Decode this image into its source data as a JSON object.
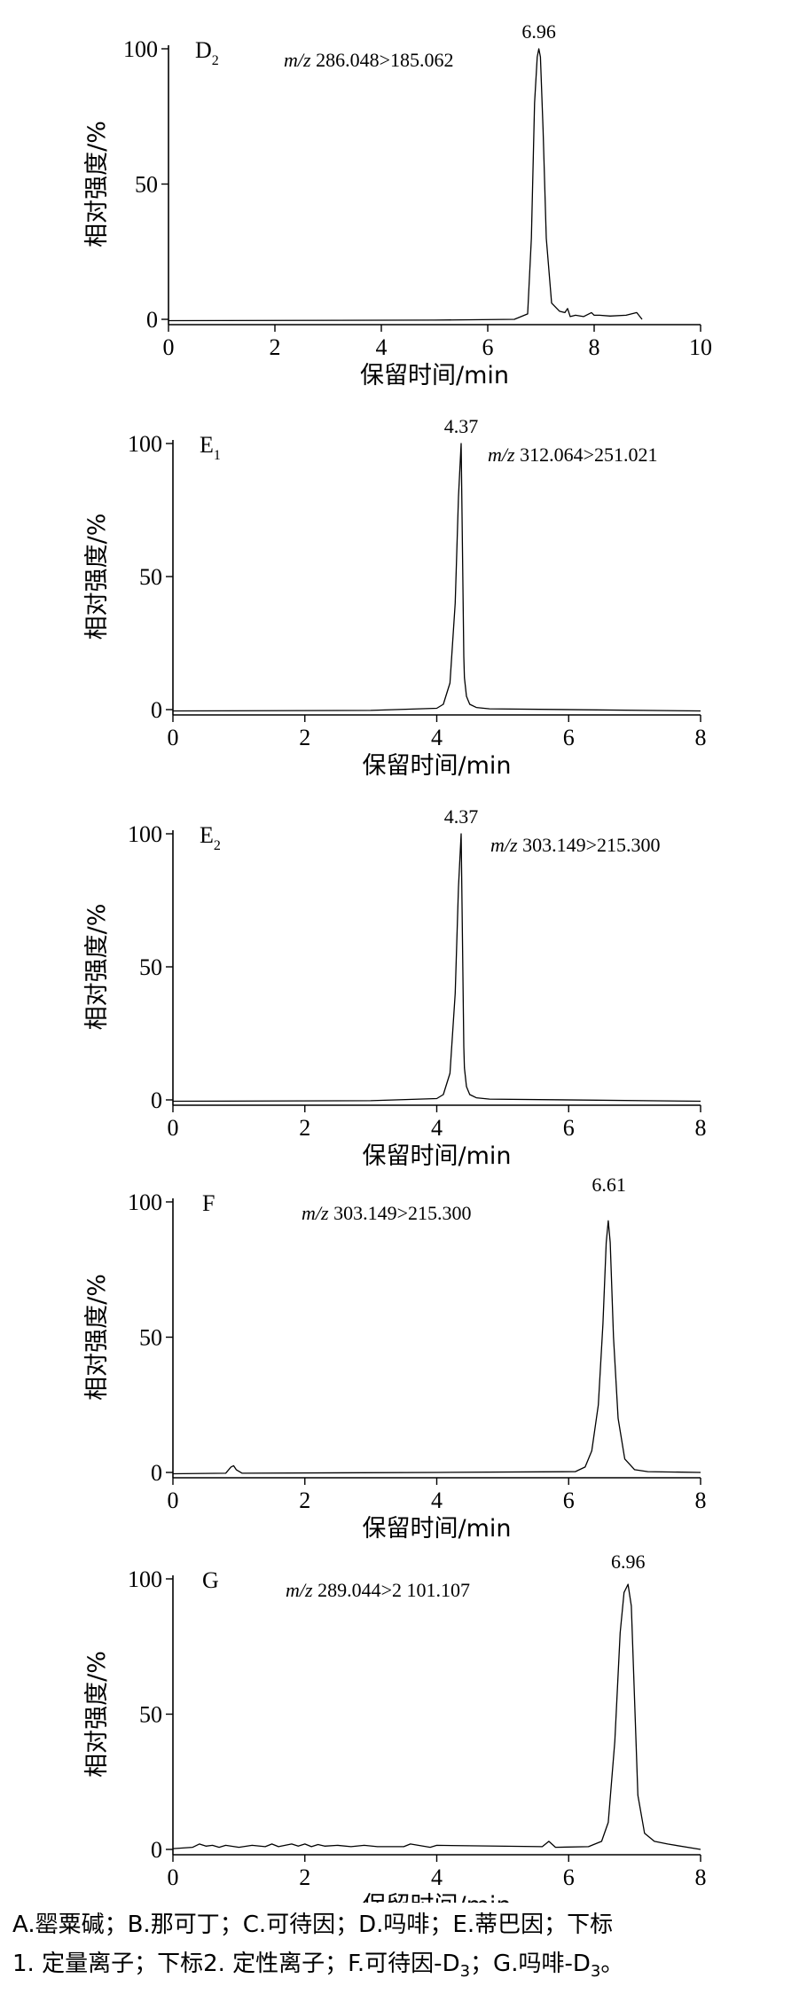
{
  "chart_data": [
    {
      "type": "line",
      "panel_label": "D",
      "panel_sub": "2",
      "transition": "286.048>185.062",
      "mz_prefix": "m/z",
      "xlabel": "保留时间/min",
      "ylabel": "相对强度/%",
      "xlim": [
        0,
        10
      ],
      "ylim": [
        0,
        100
      ],
      "xticks": [
        0,
        2,
        4,
        6,
        8,
        10
      ],
      "yticks": [
        0,
        50,
        100
      ],
      "peak_label": "6.96",
      "peak_label_x": 6.96,
      "series": [
        {
          "x": [
            0,
            5,
            6.5,
            6.75,
            6.82,
            6.88,
            6.93,
            6.96,
            6.99,
            7.04,
            7.1,
            7.2,
            7.35,
            7.45,
            7.5,
            7.55,
            7.65,
            7.8,
            7.95,
            8.0,
            8.1,
            8.3,
            8.6,
            8.8,
            8.9
          ],
          "y": [
            -0.5,
            -0.3,
            0,
            2,
            30,
            80,
            97,
            100,
            97,
            70,
            30,
            6,
            3,
            2.5,
            4,
            1,
            1.5,
            1,
            2.5,
            1.5,
            1.5,
            1.2,
            1.5,
            2.5,
            0
          ]
        }
      ]
    },
    {
      "type": "line",
      "panel_label": "E",
      "panel_sub": "1",
      "transition": "312.064>251.021",
      "mz_prefix": "m/z",
      "xlabel": "保留时间/min",
      "ylabel": "相对强度/%",
      "xlim": [
        0,
        8
      ],
      "ylim": [
        0,
        100
      ],
      "xticks": [
        0,
        2,
        4,
        6,
        8
      ],
      "yticks": [
        0,
        50,
        100
      ],
      "peak_label": "4.37",
      "peak_label_x": 4.37,
      "series": [
        {
          "x": [
            0,
            3,
            4.0,
            4.1,
            4.2,
            4.28,
            4.33,
            4.37,
            4.39,
            4.41,
            4.42,
            4.45,
            4.5,
            4.6,
            4.8,
            8
          ],
          "y": [
            -0.5,
            -0.3,
            0.5,
            2,
            10,
            40,
            80,
            100,
            60,
            20,
            12,
            5,
            2,
            0.8,
            0.3,
            -0.5
          ]
        }
      ]
    },
    {
      "type": "line",
      "panel_label": "E",
      "panel_sub": "2",
      "transition": "303.149>215.300",
      "mz_prefix": "m/z",
      "xlabel": "保留时间/min",
      "ylabel": "相对强度/%",
      "xlim": [
        0,
        8
      ],
      "ylim": [
        0,
        100
      ],
      "xticks": [
        0,
        2,
        4,
        6,
        8
      ],
      "yticks": [
        0,
        50,
        100
      ],
      "peak_label": "4.37",
      "peak_label_x": 4.37,
      "series": [
        {
          "x": [
            0,
            3,
            4.0,
            4.1,
            4.2,
            4.28,
            4.33,
            4.37,
            4.39,
            4.41,
            4.42,
            4.45,
            4.5,
            4.6,
            4.8,
            8
          ],
          "y": [
            -0.5,
            -0.3,
            0.5,
            2,
            10,
            40,
            80,
            100,
            60,
            20,
            12,
            5,
            2,
            0.8,
            0.3,
            -0.5
          ]
        }
      ]
    },
    {
      "type": "line",
      "panel_label": "F",
      "panel_sub": "",
      "transition": "303.149>215.300",
      "mz_prefix": "m/z",
      "xlabel": "保留时间/min",
      "ylabel": "相对强度/%",
      "xlim": [
        0,
        8
      ],
      "ylim": [
        0,
        100
      ],
      "xticks": [
        0,
        2,
        4,
        6,
        8
      ],
      "yticks": [
        0,
        50,
        100
      ],
      "peak_label": "6.61",
      "peak_label_x": 6.61,
      "series": [
        {
          "x": [
            0,
            0.8,
            0.88,
            0.92,
            0.96,
            1.05,
            4,
            6.1,
            6.25,
            6.35,
            6.45,
            6.52,
            6.57,
            6.6,
            6.63,
            6.68,
            6.75,
            6.85,
            7.0,
            7.2,
            8
          ],
          "y": [
            -0.5,
            -0.3,
            2,
            2.5,
            1,
            -0.3,
            0,
            0.3,
            2,
            8,
            25,
            55,
            85,
            93,
            85,
            50,
            20,
            5,
            1,
            0.3,
            0
          ]
        }
      ]
    },
    {
      "type": "line",
      "panel_label": "G",
      "panel_sub": "",
      "transition": "289.044>2 101.107",
      "mz_prefix": "m/z",
      "xlabel": "保留时间/min",
      "ylabel": "相对强度/%",
      "xlim": [
        0,
        8
      ],
      "ylim": [
        0,
        100
      ],
      "xticks": [
        0,
        2,
        4,
        6,
        8
      ],
      "yticks": [
        0,
        50,
        100
      ],
      "peak_label": "6.96",
      "peak_label_x": 6.9,
      "series": [
        {
          "x": [
            0,
            0.3,
            0.4,
            0.5,
            0.6,
            0.7,
            0.8,
            1.0,
            1.2,
            1.4,
            1.5,
            1.6,
            1.8,
            1.9,
            2.0,
            2.1,
            2.2,
            2.3,
            2.5,
            2.7,
            2.9,
            3.1,
            3.5,
            3.6,
            3.9,
            4.0,
            5.6,
            5.7,
            5.8,
            6.3,
            6.5,
            6.6,
            6.7,
            6.78,
            6.84,
            6.9,
            6.95,
            7.0,
            7.05,
            7.15,
            7.3,
            7.5,
            8
          ],
          "y": [
            0.3,
            0.8,
            2,
            1.2,
            1.5,
            0.8,
            1.5,
            0.8,
            1.5,
            1,
            2,
            1,
            2,
            1.2,
            2,
            1,
            1.8,
            1.2,
            1.5,
            1,
            1.5,
            1,
            1,
            2,
            0.8,
            1.5,
            1,
            3,
            0.8,
            1,
            3,
            10,
            40,
            80,
            95,
            98,
            90,
            55,
            20,
            6,
            3,
            2,
            0
          ]
        }
      ]
    }
  ],
  "caption": {
    "line1": "A.罂粟碱；B.那可丁；C.可待因；D.吗啡；E.蒂巴因；下标",
    "line2_a": "1. 定量离子；下标2. 定性离子；F.可待因-D",
    "line2_sub1": "3",
    "line2_b": "；G.吗啡-D",
    "line2_sub2": "3",
    "line2_c": "。"
  }
}
